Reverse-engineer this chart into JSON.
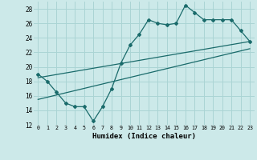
{
  "xlabel": "Humidex (Indice chaleur)",
  "bg_color": "#cce9e9",
  "grid_color": "#aad4d4",
  "line_color": "#1a6b6b",
  "xlim": [
    -0.5,
    23.5
  ],
  "ylim": [
    12,
    29
  ],
  "yticks": [
    12,
    14,
    16,
    18,
    20,
    22,
    24,
    26,
    28
  ],
  "xticks": [
    0,
    1,
    2,
    3,
    4,
    5,
    6,
    7,
    8,
    9,
    10,
    11,
    12,
    13,
    14,
    15,
    16,
    17,
    18,
    19,
    20,
    21,
    22,
    23
  ],
  "main_x": [
    0,
    1,
    2,
    3,
    4,
    5,
    6,
    7,
    8,
    9,
    10,
    11,
    12,
    13,
    14,
    15,
    16,
    17,
    18,
    19,
    20,
    21,
    22,
    23
  ],
  "main_y": [
    19.0,
    18.0,
    16.5,
    15.0,
    14.5,
    14.5,
    12.5,
    14.5,
    17.0,
    20.5,
    23.0,
    24.5,
    26.5,
    26.0,
    25.8,
    26.0,
    28.5,
    27.5,
    26.5,
    26.5,
    26.5,
    26.5,
    25.0,
    23.5
  ],
  "line2_x": [
    0,
    23
  ],
  "line2_y": [
    18.5,
    23.5
  ],
  "line3_x": [
    0,
    23
  ],
  "line3_y": [
    15.5,
    22.5
  ]
}
